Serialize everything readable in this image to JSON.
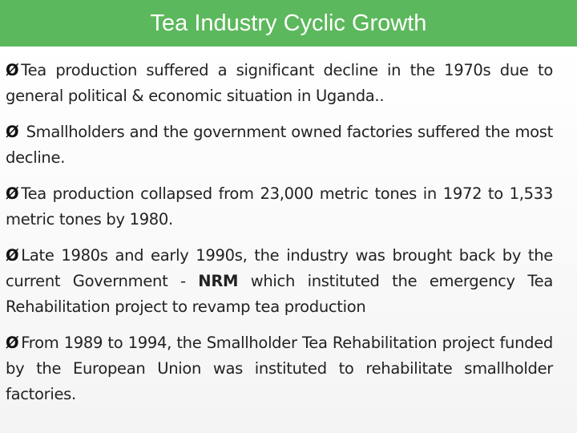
{
  "header": {
    "title": "Tea Industry Cyclic Growth"
  },
  "bullet_glyph": "Ø",
  "bullets": [
    {
      "text": "Tea production suffered a significant decline in the 1970s due to general political & economic situation in Uganda.."
    },
    {
      "text": " Smallholders and the government owned factories suffered the most decline."
    },
    {
      "text": "Tea production collapsed from 23,000 metric tones in 1972 to 1,533 metric tones by 1980."
    },
    {
      "text_before": "Late 1980s and early 1990s, the industry was brought back by the current Government - ",
      "bold": "NRM",
      "text_after": " which instituted the emergency Tea Rehabilitation project to revamp tea production"
    },
    {
      "text": "From 1989 to 1994, the Smallholder Tea Rehabilitation project funded by the European Union was instituted to rehabilitate smallholder factories."
    }
  ]
}
